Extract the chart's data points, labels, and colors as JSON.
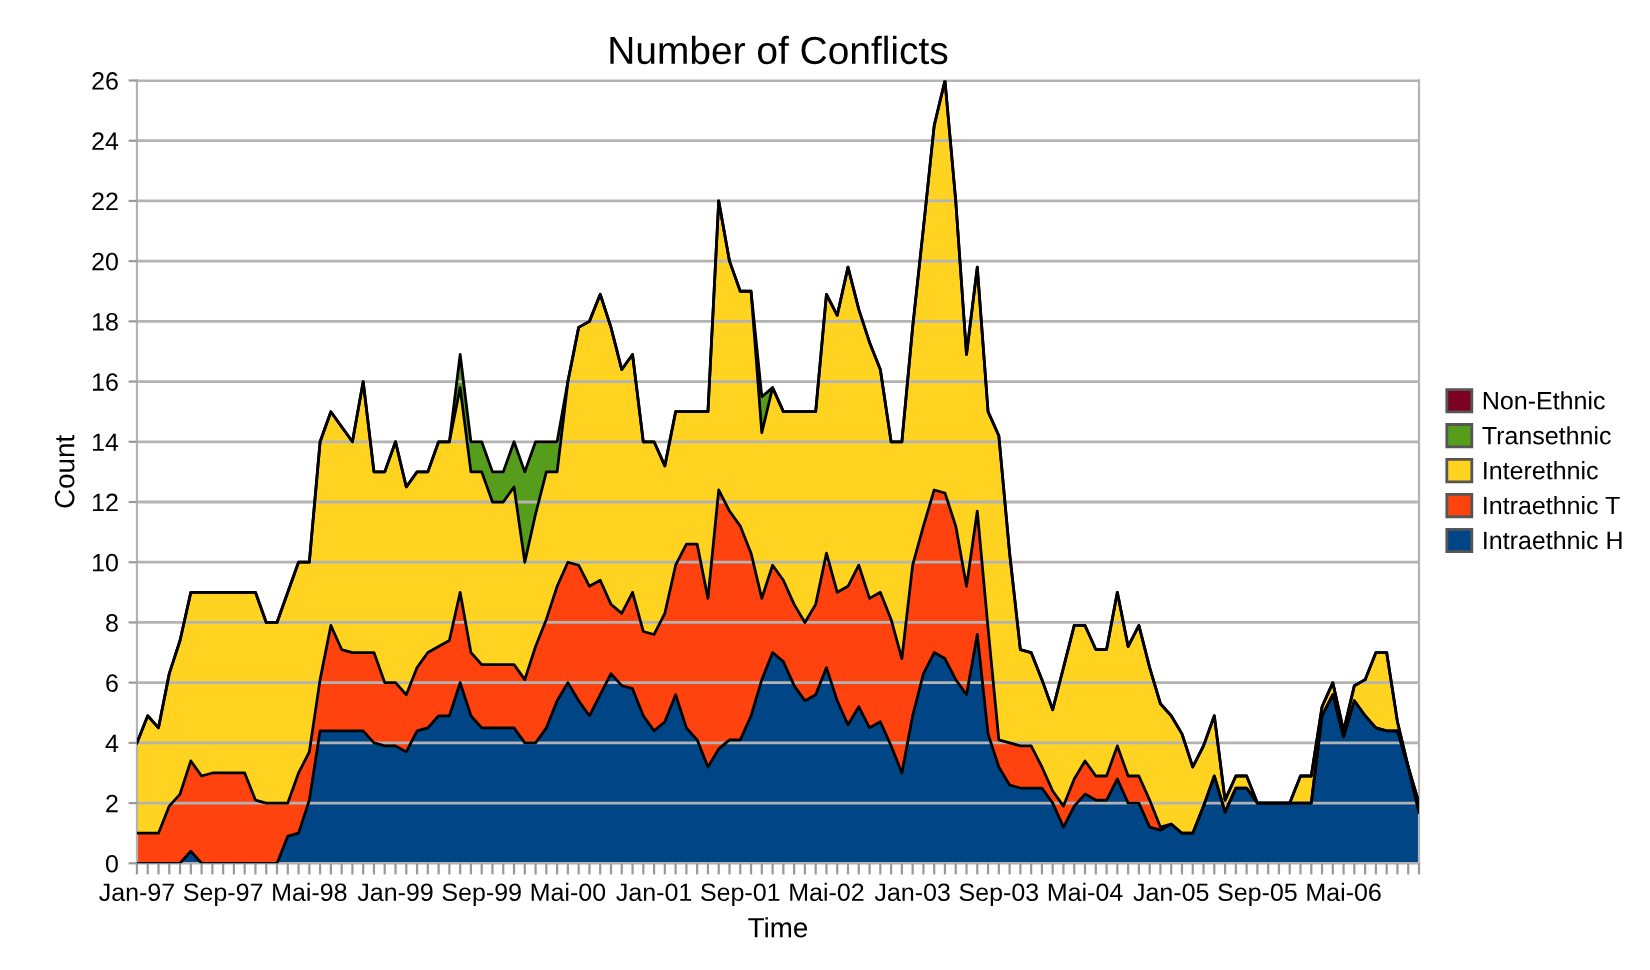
{
  "chart_data": {
    "type": "area",
    "stacked": true,
    "title": "Number of Conflicts",
    "xlabel": "Time",
    "ylabel": "Count",
    "categories": [
      "Jan-97",
      null,
      null,
      null,
      null,
      null,
      null,
      null,
      "Sep-97",
      null,
      null,
      null,
      null,
      null,
      null,
      null,
      "Mai-98",
      null,
      null,
      null,
      null,
      null,
      null,
      null,
      "Jan-99",
      null,
      null,
      null,
      null,
      null,
      null,
      null,
      "Sep-99",
      null,
      null,
      null,
      null,
      null,
      null,
      null,
      "Mai-00",
      null,
      null,
      null,
      null,
      null,
      null,
      null,
      "Jan-01",
      null,
      null,
      null,
      null,
      null,
      null,
      null,
      "Sep-01",
      null,
      null,
      null,
      null,
      null,
      null,
      null,
      "Mai-02",
      null,
      null,
      null,
      null,
      null,
      null,
      null,
      "Jan-03",
      null,
      null,
      null,
      null,
      null,
      null,
      null,
      "Sep-03",
      null,
      null,
      null,
      null,
      null,
      null,
      null,
      "Mai-04",
      null,
      null,
      null,
      null,
      null,
      null,
      null,
      "Jan-05",
      null,
      null,
      null,
      null,
      null,
      null,
      null,
      "Sep-05",
      null,
      null,
      null,
      null,
      null,
      null,
      null,
      "Mai-06",
      null,
      null,
      null,
      null,
      null,
      null,
      null
    ],
    "ylim": [
      0,
      26
    ],
    "yticks": [
      0,
      2,
      4,
      6,
      8,
      10,
      12,
      14,
      16,
      18,
      20,
      22,
      24,
      26
    ],
    "grid": "y",
    "legend": "right",
    "series": [
      {
        "name": "Intraethnic H",
        "color": "#004586",
        "values": [
          0,
          0,
          0,
          0,
          0,
          0.4,
          0,
          0,
          0,
          0,
          0,
          0,
          0,
          0,
          0.9,
          1,
          2.1,
          4.4,
          4.4,
          4.4,
          4.4,
          4.4,
          4,
          3.9,
          3.9,
          3.7,
          4.4,
          4.5,
          4.9,
          4.9,
          6,
          4.9,
          4.5,
          4.5,
          4.5,
          4.5,
          4,
          4,
          4.5,
          5.4,
          6,
          5.4,
          4.9,
          5.6,
          6.3,
          5.9,
          5.8,
          4.9,
          4.4,
          4.7,
          5.6,
          4.5,
          4.1,
          3.2,
          3.8,
          4.1,
          4.1,
          4.9,
          6.1,
          7,
          6.7,
          5.9,
          5.4,
          5.6,
          6.5,
          5.4,
          4.6,
          5.2,
          4.5,
          4.7,
          3.9,
          3,
          4.9,
          6.3,
          7,
          6.8,
          6.1,
          5.6,
          7.6,
          4.3,
          3.2,
          2.6,
          2.5,
          2.5,
          2.5,
          2,
          1.2,
          1.9,
          2.3,
          2.1,
          2.1,
          2.8,
          2,
          2,
          1.2,
          1.1,
          1.3,
          1,
          1,
          1.9,
          2.9,
          1.7,
          2.5,
          2.5,
          2,
          2,
          2,
          2,
          2,
          2,
          4.9,
          5.6,
          4.2,
          5.4,
          4.9,
          4.5,
          4.4,
          4.4,
          3.2,
          1.7
        ]
      },
      {
        "name": "Intraethnic T",
        "color": "#ff420e",
        "values": [
          1,
          1,
          1,
          1.9,
          2.3,
          3,
          2.9,
          3,
          3,
          3,
          3,
          2.1,
          2,
          2,
          1.1,
          2,
          1.6,
          1.7,
          3.5,
          2.7,
          2.6,
          2.6,
          3,
          2.1,
          2.1,
          1.9,
          2.1,
          2.5,
          2.3,
          2.5,
          3,
          2.1,
          2.1,
          2.1,
          2.1,
          2.1,
          2.1,
          3.2,
          3.6,
          3.8,
          4,
          4.5,
          4.3,
          3.8,
          2.3,
          2.4,
          3.2,
          2.8,
          3.2,
          3.6,
          4.3,
          6.1,
          6.5,
          5.6,
          8.6,
          7.6,
          7.1,
          5.4,
          2.7,
          2.9,
          2.7,
          2.7,
          2.6,
          3,
          3.8,
          3.6,
          4.6,
          4.7,
          4.3,
          4.3,
          4.2,
          3.8,
          5,
          4.9,
          5.4,
          5.5,
          5.1,
          3.6,
          4.1,
          3.5,
          0.9,
          1.4,
          1.4,
          1.4,
          0.7,
          0.4,
          0.7,
          0.9,
          1.1,
          0.8,
          0.8,
          1.1,
          0.9,
          0.9,
          0.9,
          0.1,
          0,
          0,
          0,
          0,
          0,
          0,
          0,
          0,
          0,
          0,
          0,
          0,
          0,
          0,
          0,
          0,
          0,
          0,
          0,
          0,
          0,
          0,
          0,
          0
        ]
      },
      {
        "name": "Interethnic",
        "color": "#ffd320",
        "values": [
          3,
          3.9,
          3.5,
          4.4,
          5.1,
          5.6,
          6.1,
          6,
          6,
          6,
          6,
          6.9,
          6,
          6,
          7,
          7,
          6.3,
          7.9,
          7.1,
          7.4,
          7,
          9,
          6,
          7,
          8,
          6.9,
          6.5,
          6,
          6.8,
          6.6,
          6.8,
          6,
          6.4,
          5.4,
          5.4,
          5.9,
          3.9,
          4.4,
          4.9,
          3.8,
          6,
          7.9,
          8.8,
          9.5,
          9.2,
          8.1,
          7.9,
          6.3,
          6.4,
          4.9,
          5.1,
          4.4,
          4.4,
          6.2,
          9.6,
          8.3,
          7.8,
          8.7,
          5.5,
          5.9,
          5.6,
          6.4,
          7,
          6.4,
          8.6,
          9.2,
          10.6,
          8.5,
          8.5,
          7.4,
          5.9,
          7.2,
          7.9,
          9.9,
          12.1,
          13.7,
          10.8,
          7.7,
          8.1,
          7.2,
          10.1,
          6.3,
          3.2,
          3.1,
          2.9,
          2.7,
          4.6,
          5.1,
          4.5,
          4.2,
          4.2,
          5.1,
          4.3,
          5,
          4.4,
          4.1,
          3.6,
          3.3,
          2.2,
          2,
          2,
          0.4,
          0.4,
          0.4,
          0,
          0,
          0,
          0,
          0.9,
          0.9,
          0.3,
          0.4,
          0.2,
          0.5,
          1.2,
          2.5,
          2.6,
          0.3,
          0,
          0.3
        ]
      },
      {
        "name": "Transethnic",
        "color": "#579d1c",
        "values": [
          0,
          0,
          0,
          0,
          0,
          0,
          0,
          0,
          0,
          0,
          0,
          0,
          0,
          0,
          0,
          0,
          0,
          0,
          0,
          0,
          0,
          0,
          0,
          0,
          0,
          0,
          0,
          0,
          0,
          0,
          1.1,
          1,
          1,
          1,
          1,
          1.5,
          3,
          2.4,
          1,
          1,
          0,
          0,
          0,
          0,
          0,
          0,
          0,
          0,
          0,
          0,
          0,
          0,
          0,
          0,
          0,
          0,
          0,
          0,
          1.2,
          0,
          0,
          0,
          0,
          0,
          0,
          0,
          0,
          0,
          0,
          0,
          0,
          0,
          0,
          0,
          0,
          0,
          0,
          0,
          0,
          0,
          0,
          0,
          0,
          0,
          0,
          0,
          0,
          0,
          0,
          0,
          0,
          0,
          0,
          0,
          0,
          0,
          0,
          0,
          0,
          0,
          0,
          0,
          0,
          0,
          0,
          0,
          0,
          0,
          0,
          0,
          0,
          0,
          0,
          0,
          0,
          0,
          0,
          0,
          0,
          0
        ]
      },
      {
        "name": "Non-Ethnic",
        "color": "#7e0021",
        "values": [
          null,
          null,
          null,
          null,
          null,
          null,
          null,
          null,
          null,
          null,
          null,
          null,
          null,
          null,
          null,
          null,
          null,
          null,
          null,
          null,
          null,
          null,
          null,
          null,
          null,
          null,
          null,
          null,
          null,
          null,
          null,
          null,
          null,
          null,
          null,
          null,
          null,
          null,
          null,
          null,
          null,
          null,
          null,
          null,
          null,
          null,
          null,
          null,
          null,
          null,
          null,
          null,
          null,
          null,
          null,
          null,
          null,
          null,
          null,
          null,
          null,
          null,
          null,
          null,
          null,
          null,
          null,
          null,
          null,
          null,
          null,
          null,
          null,
          null,
          null,
          null,
          null,
          null,
          null,
          null,
          null,
          null,
          null,
          null,
          null,
          null,
          null,
          null,
          null,
          null,
          null,
          null,
          null,
          null,
          null,
          null,
          null,
          null,
          null,
          null,
          null,
          null,
          null,
          null,
          null,
          null,
          null,
          null,
          null,
          null,
          null,
          null,
          null,
          null,
          null,
          null,
          null,
          null,
          null,
          null
        ]
      }
    ]
  }
}
